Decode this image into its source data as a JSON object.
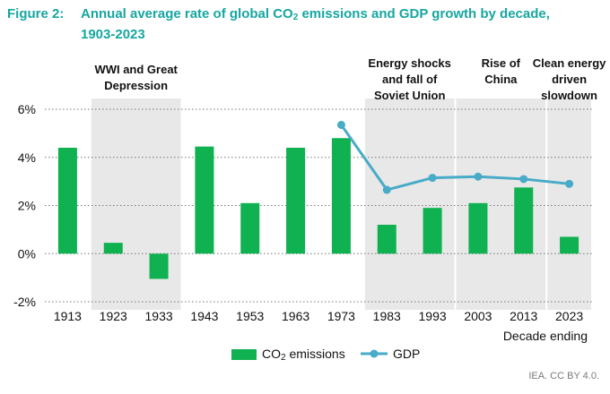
{
  "figure": {
    "label": "Figure 2:",
    "title_line1_pre": "Annual average rate of global CO",
    "title_line1_sub": "2",
    "title_line1_post": " emissions and GDP growth by decade,",
    "title_line2": "1903-2023"
  },
  "source": "IEA. CC BY 4.0.",
  "chart_data": {
    "type": "bar",
    "categories": [
      "1913",
      "1923",
      "1933",
      "1943",
      "1953",
      "1963",
      "1973",
      "1983",
      "1993",
      "2003",
      "2013",
      "2023"
    ],
    "series": [
      {
        "name": "CO₂ emissions",
        "type": "bar",
        "color": "#0fb150",
        "values": [
          4.4,
          0.45,
          -1.05,
          4.45,
          2.1,
          4.4,
          4.8,
          1.2,
          1.9,
          2.1,
          2.75,
          0.7
        ]
      },
      {
        "name": "GDP",
        "type": "line",
        "color": "#48abc8",
        "values": [
          null,
          null,
          null,
          null,
          null,
          null,
          5.35,
          2.65,
          3.15,
          3.2,
          3.1,
          2.9
        ]
      }
    ],
    "ylim": [
      -2,
      6
    ],
    "yticks": [
      -2,
      0,
      2,
      4,
      6
    ],
    "ytick_labels": [
      "-2%",
      "0%",
      "2%",
      "4%",
      "6%"
    ],
    "xlabel": "Decade ending",
    "ylabel": "",
    "grid": "horizontal-dotted",
    "shaded_periods": [
      {
        "label": [
          "WWI and Great",
          "Depression"
        ],
        "start": "1923",
        "end": "1933"
      },
      {
        "label": [
          "Energy shocks",
          "and fall of",
          "Soviet Union"
        ],
        "start": "1983",
        "end": "1993"
      },
      {
        "label": [
          "Rise of",
          "China"
        ],
        "start": "2003",
        "end": "2013"
      },
      {
        "label": [
          "Clean energy",
          "driven",
          "slowdown"
        ],
        "start": "2023",
        "end": "2023"
      }
    ]
  },
  "legend": {
    "co2_pre": "CO",
    "co2_sub": "2",
    "co2_post": " emissions",
    "gdp": "GDP"
  }
}
